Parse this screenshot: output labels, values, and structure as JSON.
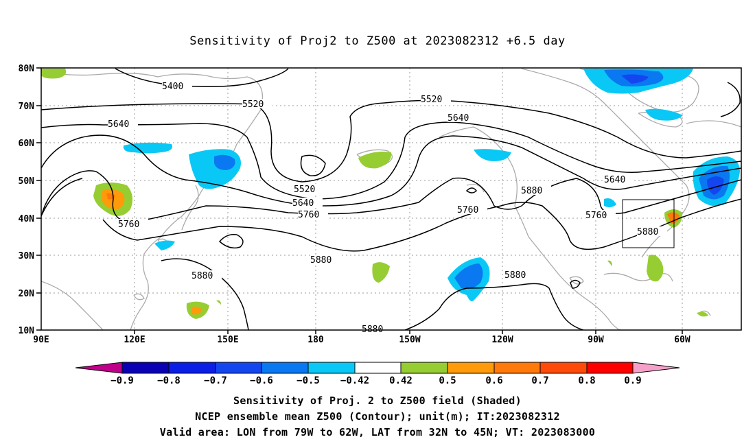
{
  "title": "Sensitivity of Proj2 to Z500 at 2023082312 +6.5 day",
  "lat_labels": [
    "80N",
    "70N",
    "60N",
    "50N",
    "40N",
    "30N",
    "20N",
    "10N"
  ],
  "lon_labels": [
    "90E",
    "120E",
    "150E",
    "180",
    "150W",
    "120W",
    "90W",
    "60W"
  ],
  "contour_labels": [
    "5400",
    "5520",
    "5640",
    "5520",
    "5640",
    "5760",
    "5520",
    "5640",
    "5760",
    "5880",
    "5640",
    "5760",
    "5880",
    "5880",
    "5880",
    "5880",
    "5880"
  ],
  "colorbar": {
    "labels": [
      "-0.9",
      "-0.8",
      "-0.7",
      "-0.6",
      "-0.5",
      "-0.42",
      "0.42",
      "0.5",
      "0.6",
      "0.7",
      "0.8",
      "0.9"
    ],
    "colors": [
      "#c0008a",
      "#0a00b4",
      "#0a1ee6",
      "#1446f0",
      "#0a78f0",
      "#0ac8f5",
      "#ffffff",
      "#96cd32",
      "#ff9b0a",
      "#ff7a0a",
      "#ff4b0a",
      "#ff0000",
      "#f5a0c8"
    ]
  },
  "caption": {
    "line1": "Sensitivity of Proj. 2 to Z500 field (Shaded)",
    "line2": "NCEP ensemble mean Z500 (Contour); unit(m); IT:2023082312",
    "line3": "Valid area: LON from 79W to 62W, LAT from 32N to 45N; VT: 2023083000"
  }
}
